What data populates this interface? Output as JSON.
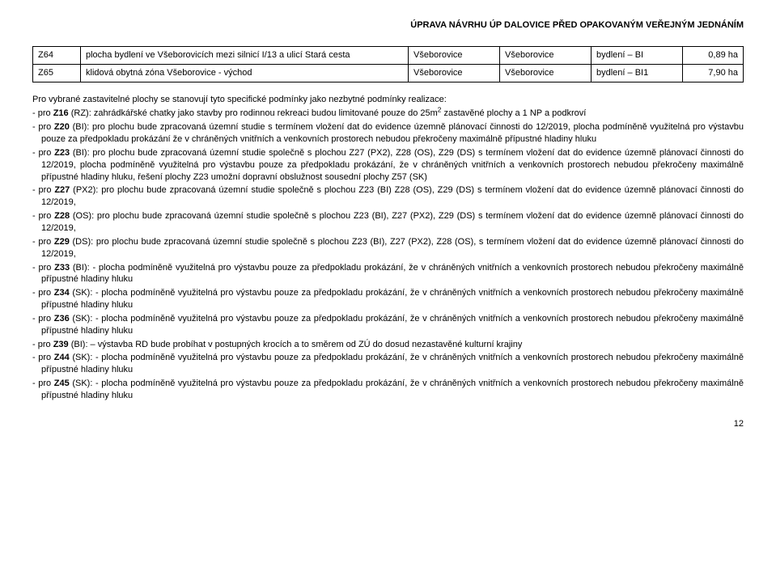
{
  "header_title": "ÚPRAVA NÁVRHU ÚP DALOVICE PŘED OPAKOVANÝM VEŘEJNÝM JEDNÁNÍM",
  "table": {
    "rows": [
      {
        "code": "Z64",
        "desc": "plocha bydlení ve Všeborovicích mezi silnicí I/13 a ulicí Stará cesta",
        "c3": "Všeborovice",
        "c4": "Všeborovice",
        "c5": "bydlení – BI",
        "c6": "0,89 ha"
      },
      {
        "code": "Z65",
        "desc": "klidová obytná zóna Všeborovice - východ",
        "c3": "Všeborovice",
        "c4": "Všeborovice",
        "c5": "bydlení – BI1",
        "c6": "7,90 ha"
      }
    ]
  },
  "lead": "Pro vybrané zastavitelné plochy se stanovují tyto specifické podmínky jako nezbytné podmínky realizace:",
  "items": [
    "pro Z16 (RZ): zahrádkářské chatky jako stavby pro rodinnou rekreaci budou limitované pouze do 25m² zastavěné plochy a 1 NP a podkroví",
    "pro Z20 (BI): pro plochu bude zpracovaná územní studie s termínem vložení dat do evidence územně plánovací činnosti do 12/2019, plocha podmíněně využitelná pro výstavbu pouze za předpokladu prokázání že v chráněných vnitřních a venkovních prostorech nebudou překročeny maximálně přípustné hladiny hluku",
    "pro Z23 (BI): pro plochu bude zpracovaná územní studie společně s plochou Z27 (PX2), Z28 (OS), Z29 (DS) s termínem vložení dat do evidence územně plánovací činnosti do 12/2019, plocha podmíněně využitelná pro výstavbu pouze za předpokladu prokázání, že v chráněných vnitřních a venkovních prostorech nebudou překročeny maximálně přípustné hladiny hluku, řešení plochy Z23 umožní dopravní obslužnost sousední plochy Z57 (SK)",
    "pro Z27 (PX2): pro plochu bude zpracovaná územní studie společně s plochou Z23 (BI) Z28 (OS), Z29 (DS) s termínem vložení dat do evidence územně plánovací činnosti do 12/2019,",
    "pro Z28 (OS): pro plochu bude zpracovaná územní studie společně s plochou Z23 (BI), Z27 (PX2), Z29 (DS) s termínem vložení dat do evidence územně plánovací činnosti do 12/2019,",
    "pro Z29 (DS): pro plochu bude zpracovaná územní studie společně s plochou Z23 (BI), Z27 (PX2), Z28 (OS), s termínem vložení dat do evidence územně plánovací činnosti do 12/2019,",
    "pro Z33 (BI): - plocha podmíněně využitelná pro výstavbu pouze za předpokladu prokázání, že v chráněných vnitřních a venkovních prostorech nebudou překročeny maximálně přípustné hladiny hluku",
    "pro Z34 (SK): - plocha podmíněně využitelná pro výstavbu pouze za předpokladu prokázání, že v chráněných vnitřních a venkovních prostorech nebudou překročeny maximálně přípustné hladiny hluku",
    "pro Z36 (SK): - plocha podmíněně využitelná pro výstavbu pouze za předpokladu prokázání, že v chráněných vnitřních a venkovních prostorech nebudou překročeny maximálně přípustné hladiny hluku",
    "pro Z39 (BI): – výstavba RD bude probíhat v postupných krocích a to směrem od ZÚ do dosud nezastavěné kulturní krajiny",
    "pro Z44 (SK): - plocha podmíněně využitelná pro výstavbu pouze za předpokladu prokázání, že v chráněných vnitřních a venkovních prostorech nebudou překročeny maximálně přípustné hladiny hluku",
    "pro Z45 (SK): - plocha podmíněně využitelná pro výstavbu pouze za předpokladu prokázání, že v chráněných vnitřních a venkovních prostorech nebudou překročeny maximálně přípustné hladiny hluku"
  ],
  "page_number": "12"
}
